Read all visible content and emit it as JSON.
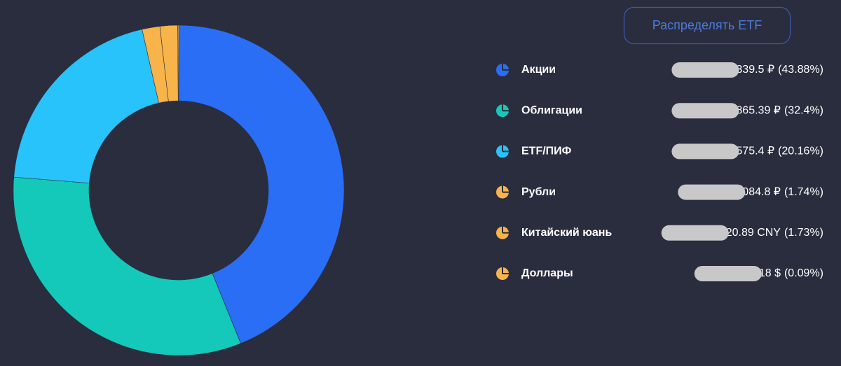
{
  "button": "Распределять ETF",
  "chart_data": {
    "type": "donut",
    "categories": [
      "Акции",
      "Облигации",
      "ETF/ПИФ",
      "Рубли",
      "Китайский юань",
      "Доллары"
    ],
    "values": [
      43.88,
      32.4,
      20.16,
      1.74,
      1.73,
      0.09
    ],
    "value_labels": [
      "(43.88%)",
      "(32.4%)",
      "(20.16%)",
      "(1.74%)",
      "(1.73%)",
      "(0.09%)"
    ],
    "amounts": [
      "339.5 ₽",
      "865.39 ₽",
      "575.4 ₽",
      "084.8 ₽",
      "20.89 CNY",
      "18 $"
    ],
    "colors": [
      "#2a6ef6",
      "#14c9b9",
      "#29c3fb",
      "#f8b44a",
      "#f8b44a",
      "#f8b44a"
    ]
  }
}
